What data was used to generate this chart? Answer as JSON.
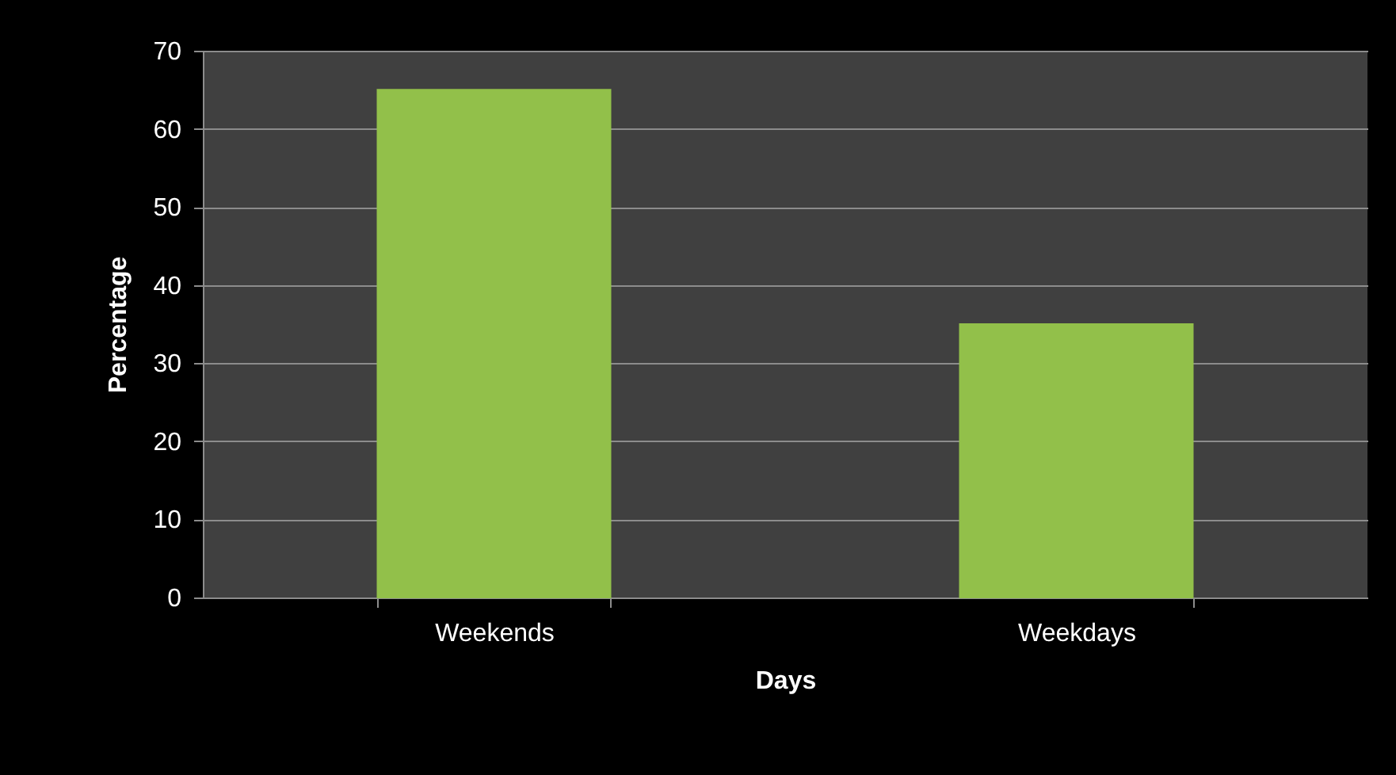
{
  "chart_data": {
    "type": "bar",
    "xlabel": "Days",
    "ylabel": "Percentage",
    "categories": [
      "Weekends",
      "Weekdays"
    ],
    "values": [
      65,
      35
    ],
    "color": "#92c04a",
    "ylim": [
      0,
      70
    ],
    "yticks": [
      0,
      10,
      20,
      30,
      40,
      50,
      60,
      70
    ],
    "grid": "y"
  }
}
